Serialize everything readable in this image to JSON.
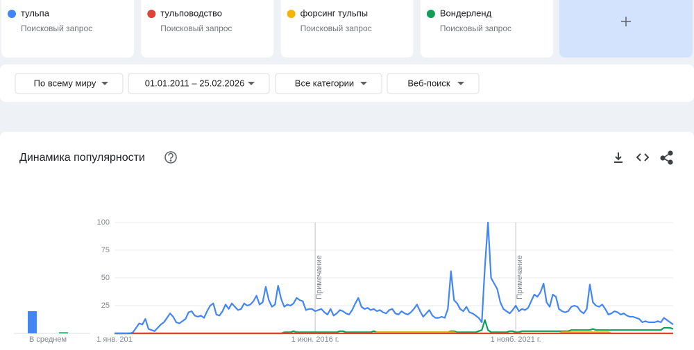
{
  "term_cards": {
    "subtitle": "Поисковый запрос"
  },
  "filters": [
    "По всему миру",
    "01.01.2011 – 25.02.2026",
    "Все категории",
    "Веб-поиск"
  ],
  "chart_data": [
    {
      "type": "bar",
      "xlabel": "В среднем",
      "ylim": [
        0,
        100
      ],
      "series": [
        {
          "color": "#4285f4",
          "values": [
            20
          ]
        },
        {
          "color": "#db4437",
          "values": [
            0
          ]
        },
        {
          "color": "#f4b400",
          "values": [
            0
          ]
        },
        {
          "color": "#0f9d58",
          "values": [
            1
          ]
        }
      ]
    },
    {
      "type": "line",
      "title": "Динамика популярности",
      "grid": true,
      "ylim": [
        0,
        100
      ],
      "yticks": [
        25,
        50,
        75,
        100
      ],
      "notes": [
        {
          "at": "1 июн. 2016 г.",
          "label": "Примечание"
        },
        {
          "at": "1 нояб. 2021 г.",
          "label": "Примечание"
        }
      ],
      "categories": [
        "1 янв. 201",
        null,
        null,
        null,
        null,
        null,
        null,
        null,
        null,
        null,
        null,
        null,
        null,
        null,
        null,
        null,
        null,
        null,
        null,
        null,
        null,
        null,
        null,
        null,
        null,
        null,
        null,
        null,
        null,
        null,
        null,
        null,
        null,
        null,
        null,
        null,
        null,
        null,
        null,
        null,
        null,
        null,
        null,
        null,
        null,
        null,
        null,
        null,
        null,
        null,
        null,
        null,
        null,
        null,
        null,
        null,
        null,
        null,
        null,
        null,
        null,
        null,
        null,
        null,
        null,
        "1 июн. 2016 г.",
        null,
        null,
        null,
        null,
        null,
        null,
        null,
        null,
        null,
        null,
        null,
        null,
        null,
        null,
        null,
        null,
        null,
        null,
        null,
        null,
        null,
        null,
        null,
        null,
        null,
        null,
        null,
        null,
        null,
        null,
        null,
        null,
        null,
        null,
        null,
        null,
        null,
        null,
        null,
        null,
        null,
        null,
        null,
        null,
        null,
        null,
        null,
        null,
        null,
        null,
        null,
        null,
        null,
        null,
        null,
        null,
        null,
        null,
        null,
        null,
        null,
        null,
        null,
        null,
        "1 нояб. 2021 г.",
        null,
        null,
        null,
        null,
        null,
        null,
        null,
        null,
        null,
        null,
        null,
        null,
        null,
        null,
        null,
        null,
        null,
        null,
        null,
        null,
        null,
        null,
        null,
        null,
        null,
        null,
        null,
        null,
        null,
        null,
        null,
        null,
        null,
        null,
        null,
        null,
        null,
        null,
        null,
        null,
        null,
        null,
        null,
        null,
        null,
        null,
        null,
        null,
        null,
        null,
        null
      ],
      "series": [
        {
          "name": "тульпа",
          "color": "#4285f4",
          "values": [
            0,
            0,
            0,
            0,
            0,
            0,
            1,
            5,
            9,
            8,
            13,
            4,
            3,
            2,
            5,
            8,
            10,
            14,
            18,
            15,
            10,
            9,
            11,
            13,
            19,
            20,
            16,
            15,
            16,
            14,
            20,
            25,
            27,
            17,
            16,
            20,
            26,
            22,
            27,
            24,
            21,
            22,
            27,
            25,
            26,
            29,
            34,
            26,
            28,
            42,
            30,
            24,
            26,
            43,
            31,
            24,
            26,
            25,
            27,
            32,
            30,
            29,
            21,
            22,
            22,
            20,
            21,
            22,
            19,
            17,
            22,
            16,
            18,
            21,
            20,
            18,
            17,
            21,
            27,
            32,
            24,
            22,
            23,
            21,
            22,
            20,
            21,
            19,
            18,
            21,
            22,
            18,
            17,
            20,
            18,
            17,
            19,
            22,
            26,
            20,
            15,
            18,
            21,
            16,
            14,
            14,
            15,
            14,
            22,
            56,
            30,
            27,
            22,
            20,
            24,
            19,
            18,
            16,
            14,
            10,
            60,
            100,
            50,
            45,
            40,
            28,
            22,
            20,
            18,
            21,
            25,
            20,
            22,
            21,
            23,
            29,
            35,
            33,
            37,
            45,
            28,
            24,
            35,
            33,
            22,
            20,
            19,
            20,
            24,
            25,
            24,
            20,
            18,
            22,
            44,
            28,
            25,
            24,
            26,
            22,
            17,
            18,
            20,
            19,
            17,
            18,
            16,
            15,
            15,
            14,
            13,
            10,
            11,
            10,
            10,
            10,
            11,
            10,
            14,
            12,
            10,
            8
          ]
        },
        {
          "name": "тульповодство",
          "color": "#db4437",
          "values": [
            0,
            0,
            0,
            0,
            0,
            0,
            0,
            0,
            0,
            0,
            0,
            0,
            0,
            0,
            0,
            0,
            0,
            0,
            0,
            0,
            0,
            0,
            0,
            0,
            0,
            0,
            0,
            0,
            0,
            0,
            0,
            0,
            0,
            0,
            0,
            0,
            0,
            0,
            0,
            0,
            0,
            0,
            0,
            0,
            0,
            0,
            0,
            0,
            0,
            0,
            0,
            0,
            0,
            0,
            0,
            0,
            0,
            0,
            0,
            0,
            0,
            0,
            0,
            0,
            0,
            0,
            0,
            0,
            0,
            0,
            0,
            0,
            0,
            0,
            0,
            0,
            0,
            0,
            0,
            0,
            0,
            0,
            0,
            0,
            0,
            0,
            0,
            0,
            0,
            0,
            0,
            0,
            0,
            0,
            0,
            0,
            0,
            0,
            0,
            0,
            0,
            0,
            0,
            0,
            0,
            0,
            0,
            0,
            0,
            0,
            0,
            0,
            0,
            0,
            0,
            0,
            0,
            0,
            0,
            0,
            0,
            0,
            0,
            0,
            0,
            0,
            0,
            0,
            0,
            0,
            0,
            0,
            0,
            0,
            0,
            0,
            0,
            0,
            0,
            0,
            0,
            0,
            0,
            0,
            0,
            0,
            0,
            0,
            0,
            0,
            0,
            0,
            0,
            0,
            0,
            0,
            0,
            0,
            0,
            0,
            0,
            0,
            0,
            0,
            0,
            0,
            0,
            0,
            0,
            0,
            0,
            0,
            0,
            0,
            0,
            0,
            0,
            0,
            0,
            0,
            0,
            0
          ]
        },
        {
          "name": "форсинг тульпы",
          "color": "#f4b400",
          "values": [
            0,
            0,
            0,
            0,
            0,
            0,
            0,
            0,
            0,
            0,
            0,
            0,
            0,
            0,
            0,
            0,
            0,
            0,
            0,
            0,
            0,
            0,
            0,
            0,
            0,
            0,
            0,
            0,
            0,
            0,
            0,
            0,
            0,
            0,
            0,
            0,
            0,
            0,
            0,
            0,
            0,
            0,
            0,
            0,
            0,
            0,
            0,
            0,
            0,
            0,
            0,
            0,
            0,
            0,
            0,
            0,
            0,
            0,
            0,
            0,
            0,
            0,
            0,
            0,
            0,
            0,
            0,
            0,
            0,
            0,
            0,
            0,
            0,
            0,
            0,
            0,
            0,
            0,
            0,
            0,
            0,
            0,
            0,
            0,
            0,
            1,
            1,
            1,
            1,
            1,
            1,
            1,
            1,
            1,
            1,
            1,
            1,
            1,
            1,
            1,
            1,
            1,
            1,
            1,
            1,
            1,
            1,
            1,
            1,
            1,
            1,
            0,
            0,
            0,
            0,
            0,
            0,
            0,
            0,
            0,
            0,
            0,
            0,
            0,
            0,
            0,
            0,
            0,
            0,
            0,
            0,
            0,
            0,
            0,
            0,
            0,
            0,
            0,
            0,
            0,
            0,
            0,
            0,
            0,
            0,
            1,
            1,
            1,
            1,
            1,
            1,
            1,
            1,
            1,
            1,
            1,
            1,
            1,
            1,
            1,
            1,
            0,
            0,
            0,
            0,
            0,
            0,
            0,
            0,
            0,
            0,
            0,
            0,
            0,
            0,
            0,
            0,
            0,
            0,
            0,
            0,
            0
          ]
        },
        {
          "name": "Вондерленд",
          "color": "#0f9d58",
          "values": [
            0,
            0,
            0,
            0,
            0,
            0,
            0,
            0,
            0,
            0,
            0,
            0,
            0,
            0,
            0,
            0,
            0,
            0,
            0,
            0,
            0,
            0,
            0,
            0,
            0,
            0,
            0,
            0,
            0,
            0,
            0,
            0,
            0,
            0,
            0,
            0,
            0,
            0,
            0,
            0,
            0,
            0,
            0,
            0,
            0,
            0,
            0,
            0,
            0,
            0,
            0,
            0,
            0,
            0,
            0,
            1,
            1,
            1,
            2,
            1,
            1,
            1,
            1,
            1,
            1,
            1,
            1,
            1,
            1,
            1,
            1,
            1,
            1,
            2,
            2,
            1,
            1,
            1,
            1,
            1,
            1,
            1,
            1,
            1,
            2,
            1,
            1,
            1,
            1,
            1,
            1,
            1,
            1,
            1,
            1,
            1,
            1,
            1,
            1,
            1,
            1,
            1,
            1,
            1,
            1,
            1,
            1,
            1,
            1,
            2,
            2,
            1,
            1,
            1,
            1,
            1,
            1,
            1,
            2,
            3,
            12,
            3,
            1,
            1,
            1,
            1,
            1,
            1,
            2,
            2,
            1,
            1,
            2,
            2,
            2,
            2,
            2,
            2,
            2,
            2,
            2,
            2,
            2,
            2,
            2,
            2,
            2,
            2,
            3,
            3,
            3,
            3,
            3,
            3,
            3,
            4,
            3,
            3,
            3,
            3,
            3,
            3,
            3,
            3,
            3,
            3,
            3,
            3,
            3,
            3,
            3,
            3,
            3,
            3,
            3,
            3,
            3,
            3,
            5,
            5,
            5,
            4
          ]
        }
      ]
    }
  ]
}
